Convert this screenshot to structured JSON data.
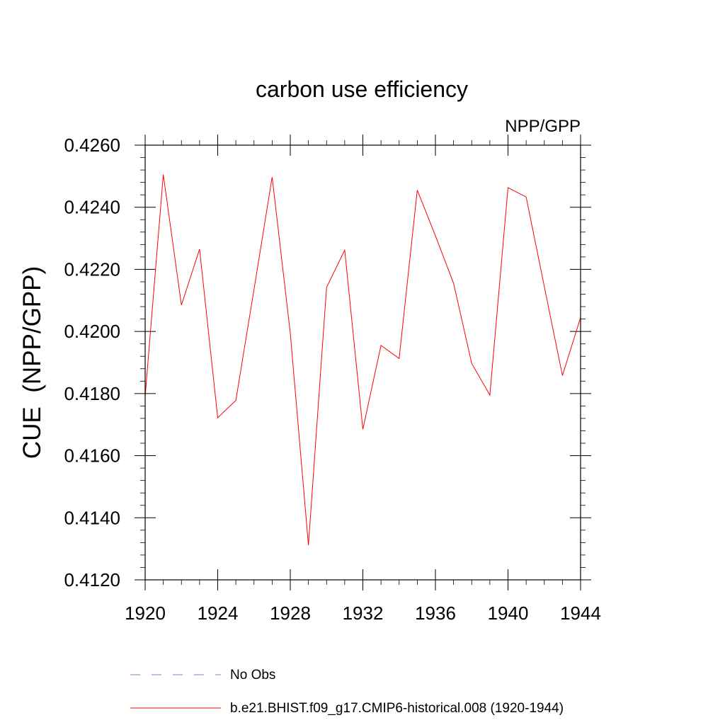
{
  "chart_data": {
    "type": "line",
    "title": "carbon use efficiency",
    "subtitle": "NPP/GPP",
    "xlabel": "",
    "ylabel": "CUE  (NPP/GPP)",
    "xlim": [
      1920,
      1944
    ],
    "ylim": [
      0.412,
      0.426
    ],
    "x_ticks": [
      "1920",
      "1924",
      "1928",
      "1932",
      "1936",
      "1940",
      "1944"
    ],
    "y_ticks": [
      "0.4120",
      "0.4140",
      "0.4160",
      "0.4180",
      "0.4200",
      "0.4220",
      "0.4240",
      "0.4260"
    ],
    "grid": false,
    "series": [
      {
        "name": "b.e21.BHIST.f09_g17.CMIP6-historical.008 (1920-1944)",
        "color": "#ff0000",
        "x": [
          1920,
          1921,
          1922,
          1923,
          1924,
          1925,
          1926,
          1927,
          1928,
          1929,
          1930,
          1931,
          1932,
          1933,
          1934,
          1935,
          1936,
          1937,
          1938,
          1939,
          1940,
          1941,
          1942,
          1943,
          1944
        ],
        "values": [
          0.4179,
          0.42505,
          0.42085,
          0.42265,
          0.41722,
          0.41778,
          0.42135,
          0.42497,
          0.41995,
          0.41312,
          0.42142,
          0.42262,
          0.41685,
          0.41955,
          0.41913,
          0.42455,
          0.42308,
          0.42155,
          0.41897,
          0.41795,
          0.42463,
          0.42433,
          0.42145,
          0.41858,
          0.42045
        ]
      }
    ],
    "legend": {
      "placement": "bottom",
      "entries": [
        {
          "label": "No Obs",
          "style": "dashed",
          "color": "#7d7dd1"
        },
        {
          "label": "b.e21.BHIST.f09_g17.CMIP6-historical.008 (1920-1944)",
          "style": "solid",
          "color": "#ff0000"
        }
      ]
    }
  }
}
